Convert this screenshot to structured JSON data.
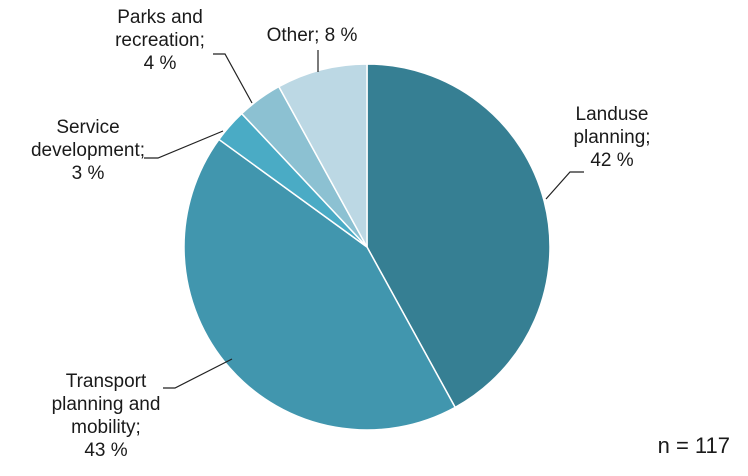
{
  "chart_data": {
    "type": "pie",
    "title": "",
    "slices": [
      {
        "label_lines": [
          "Landuse",
          "planning;",
          "42 %"
        ],
        "value": 42,
        "color": "#367f93"
      },
      {
        "label_lines": [
          "Transport",
          "planning and",
          "mobility;",
          "43 %"
        ],
        "value": 43,
        "color": "#4196ae"
      },
      {
        "label_lines": [
          "Service",
          "development;",
          "3 %"
        ],
        "value": 3,
        "color": "#4aabc5"
      },
      {
        "label_lines": [
          "Parks and",
          "recreation;",
          "4 %"
        ],
        "value": 4,
        "color": "#8cc1d2"
      },
      {
        "label_lines": [
          "Other; 8 %"
        ],
        "value": 8,
        "color": "#bcd8e4"
      }
    ],
    "note": "n = 117"
  }
}
